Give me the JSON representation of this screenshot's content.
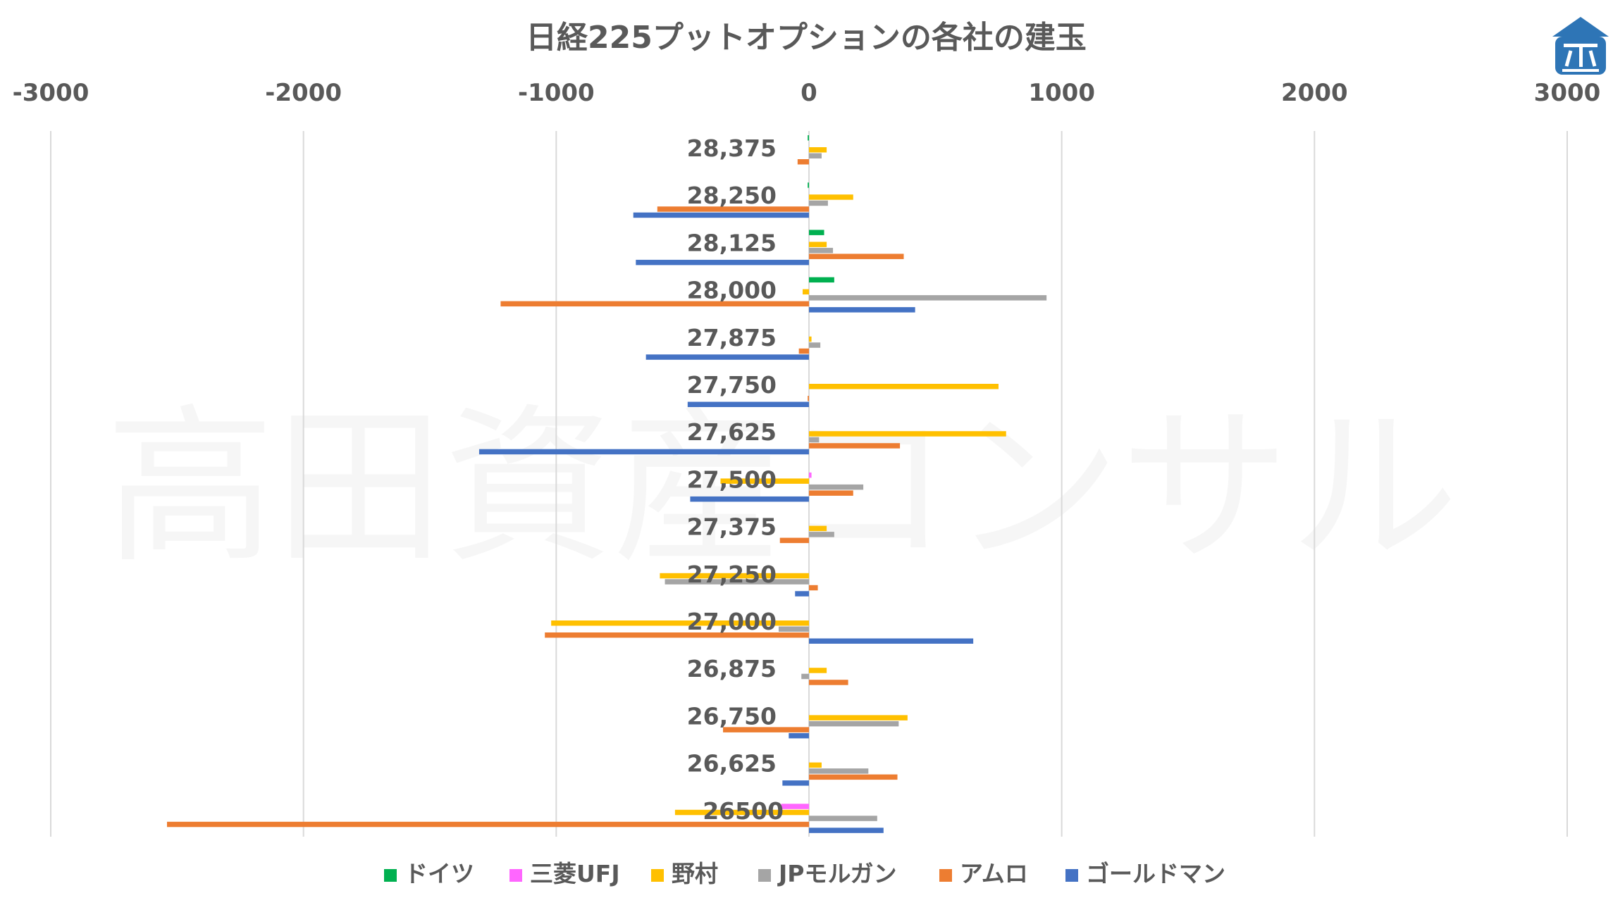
{
  "chart_data": {
    "type": "bar",
    "orientation": "horizontal",
    "title": "日経225プットオプションの各社の建玉",
    "watermark": "高田資産コンサル",
    "xlim": [
      -3000,
      3000
    ],
    "xticks": [
      -3000,
      -2000,
      -1000,
      0,
      1000,
      2000,
      3000
    ],
    "xtick_labels": [
      "-3000",
      "-2000",
      "-1000",
      "0",
      "1000",
      "2000",
      "3000"
    ],
    "grid": true,
    "legend_position": "bottom",
    "categories": [
      "28,375",
      "28,250",
      "28,125",
      "28,000",
      "27,875",
      "27,750",
      "27,625",
      "27,500",
      "27,375",
      "27,250",
      "27,000",
      "26,875",
      "26,750",
      "26,625",
      "26500"
    ],
    "series": [
      {
        "name": "ドイツ",
        "color": "#00b050",
        "values": [
          -5,
          -5,
          60,
          100,
          0,
          0,
          0,
          0,
          0,
          0,
          0,
          0,
          0,
          0,
          0
        ]
      },
      {
        "name": "三菱UFJ",
        "color": "#ff66ff",
        "values": [
          0,
          0,
          0,
          0,
          0,
          0,
          0,
          10,
          0,
          0,
          0,
          0,
          0,
          0,
          -110
        ]
      },
      {
        "name": "野村",
        "color": "#ffc000",
        "values": [
          70,
          175,
          70,
          -25,
          10,
          750,
          780,
          -350,
          70,
          -590,
          -1020,
          70,
          390,
          50,
          -530
        ]
      },
      {
        "name": "JPモルガン",
        "color": "#a5a5a5",
        "values": [
          50,
          75,
          95,
          940,
          45,
          0,
          40,
          215,
          100,
          -570,
          -120,
          -30,
          355,
          235,
          270
        ]
      },
      {
        "name": "アムロ",
        "color": "#ed7d31",
        "values": [
          -45,
          -600,
          375,
          -1220,
          -40,
          -5,
          360,
          175,
          -115,
          35,
          -1045,
          155,
          -340,
          350,
          -2540
        ]
      },
      {
        "name": "ゴールドマン",
        "color": "#4472c4",
        "values": [
          0,
          -695,
          -685,
          420,
          -645,
          -480,
          -1305,
          -470,
          0,
          -55,
          650,
          0,
          -80,
          -105,
          295
        ]
      }
    ]
  },
  "logo": {
    "name": "company-logo"
  }
}
